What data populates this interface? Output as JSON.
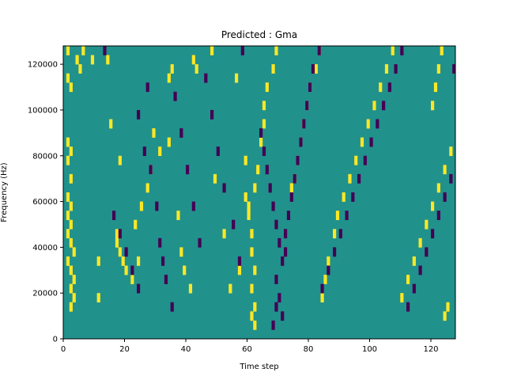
{
  "chart_data": {
    "type": "heatmap",
    "title": "Predicted : Gma",
    "xlabel": "Time step",
    "ylabel": "Frequency (Hz)",
    "xlim": [
      0,
      128
    ],
    "ylim": [
      0,
      128000
    ],
    "xticks": [
      0,
      20,
      40,
      60,
      80,
      100,
      120
    ],
    "yticks": [
      0,
      20000,
      40000,
      60000,
      80000,
      100000,
      120000
    ],
    "colormap": "viridis",
    "colors": {
      "background": "#21918c",
      "high": "#fde725",
      "low": "#440154"
    },
    "grid": false,
    "n_time_steps": 128,
    "n_freq_bins": 32,
    "high_cells": [
      [
        1,
        31
      ],
      [
        1,
        28
      ],
      [
        2,
        27
      ],
      [
        1,
        21
      ],
      [
        2,
        20
      ],
      [
        1,
        19
      ],
      [
        2,
        17
      ],
      [
        1,
        15
      ],
      [
        2,
        14
      ],
      [
        1,
        13
      ],
      [
        2,
        12
      ],
      [
        1,
        11
      ],
      [
        2,
        10
      ],
      [
        3,
        9
      ],
      [
        1,
        8
      ],
      [
        2,
        7
      ],
      [
        3,
        6
      ],
      [
        2,
        5
      ],
      [
        3,
        4
      ],
      [
        2,
        3
      ],
      [
        4,
        30
      ],
      [
        5,
        29
      ],
      [
        6,
        31
      ],
      [
        9,
        30
      ],
      [
        11,
        8
      ],
      [
        11,
        4
      ],
      [
        14,
        30
      ],
      [
        15,
        23
      ],
      [
        18,
        19
      ],
      [
        17,
        11
      ],
      [
        17,
        10
      ],
      [
        18,
        9
      ],
      [
        19,
        8
      ],
      [
        20,
        7
      ],
      [
        22,
        6
      ],
      [
        23,
        12
      ],
      [
        24,
        8
      ],
      [
        25,
        14
      ],
      [
        27,
        16
      ],
      [
        28,
        18
      ],
      [
        29,
        22
      ],
      [
        31,
        20
      ],
      [
        34,
        21
      ],
      [
        34,
        28
      ],
      [
        35,
        29
      ],
      [
        37,
        13
      ],
      [
        38,
        9
      ],
      [
        39,
        7
      ],
      [
        41,
        5
      ],
      [
        42,
        30
      ],
      [
        43,
        29
      ],
      [
        48,
        31
      ],
      [
        49,
        17
      ],
      [
        52,
        11
      ],
      [
        54,
        5
      ],
      [
        56,
        28
      ],
      [
        57,
        7
      ],
      [
        59,
        19
      ],
      [
        59,
        15
      ],
      [
        60,
        13
      ],
      [
        61,
        11
      ],
      [
        61,
        9
      ],
      [
        62,
        7
      ],
      [
        61,
        5
      ],
      [
        62,
        3
      ],
      [
        61,
        2
      ],
      [
        62,
        1
      ],
      [
        60,
        14
      ],
      [
        62,
        16
      ],
      [
        63,
        18
      ],
      [
        64,
        21
      ],
      [
        65,
        23
      ],
      [
        65,
        25
      ],
      [
        66,
        27
      ],
      [
        68,
        29
      ],
      [
        69,
        31
      ],
      [
        74,
        16
      ],
      [
        75,
        17
      ],
      [
        76,
        19
      ],
      [
        77,
        21
      ],
      [
        78,
        23
      ],
      [
        79,
        25
      ],
      [
        80,
        27
      ],
      [
        82,
        29
      ],
      [
        83,
        31
      ],
      [
        84,
        4
      ],
      [
        85,
        6
      ],
      [
        86,
        8
      ],
      [
        88,
        11
      ],
      [
        89,
        13
      ],
      [
        91,
        15
      ],
      [
        93,
        17
      ],
      [
        95,
        19
      ],
      [
        97,
        21
      ],
      [
        99,
        23
      ],
      [
        101,
        25
      ],
      [
        103,
        27
      ],
      [
        105,
        29
      ],
      [
        107,
        31
      ],
      [
        110,
        4
      ],
      [
        112,
        6
      ],
      [
        114,
        8
      ],
      [
        116,
        10
      ],
      [
        118,
        12
      ],
      [
        120,
        14
      ],
      [
        122,
        16
      ],
      [
        124,
        18
      ],
      [
        126,
        20
      ],
      [
        124,
        2
      ],
      [
        125,
        3
      ],
      [
        120,
        25
      ],
      [
        121,
        27
      ],
      [
        122,
        29
      ],
      [
        123,
        31
      ]
    ],
    "low_cells": [
      [
        13,
        31
      ],
      [
        16,
        13
      ],
      [
        18,
        11
      ],
      [
        20,
        9
      ],
      [
        22,
        7
      ],
      [
        24,
        5
      ],
      [
        24,
        24
      ],
      [
        26,
        20
      ],
      [
        27,
        27
      ],
      [
        28,
        18
      ],
      [
        30,
        14
      ],
      [
        31,
        10
      ],
      [
        32,
        8
      ],
      [
        33,
        6
      ],
      [
        35,
        3
      ],
      [
        36,
        26
      ],
      [
        38,
        22
      ],
      [
        40,
        18
      ],
      [
        42,
        14
      ],
      [
        44,
        10
      ],
      [
        46,
        28
      ],
      [
        48,
        24
      ],
      [
        50,
        20
      ],
      [
        52,
        16
      ],
      [
        55,
        12
      ],
      [
        57,
        8
      ],
      [
        58,
        31
      ],
      [
        64,
        22
      ],
      [
        65,
        20
      ],
      [
        66,
        18
      ],
      [
        67,
        16
      ],
      [
        68,
        14
      ],
      [
        69,
        12
      ],
      [
        70,
        10
      ],
      [
        71,
        8
      ],
      [
        69,
        6
      ],
      [
        70,
        4
      ],
      [
        71,
        2
      ],
      [
        69,
        3
      ],
      [
        68,
        1
      ],
      [
        72,
        9
      ],
      [
        72,
        11
      ],
      [
        73,
        13
      ],
      [
        74,
        15
      ],
      [
        75,
        17
      ],
      [
        76,
        19
      ],
      [
        77,
        21
      ],
      [
        78,
        23
      ],
      [
        79,
        25
      ],
      [
        80,
        27
      ],
      [
        81,
        29
      ],
      [
        83,
        31
      ],
      [
        84,
        5
      ],
      [
        86,
        7
      ],
      [
        88,
        9
      ],
      [
        90,
        11
      ],
      [
        92,
        13
      ],
      [
        94,
        15
      ],
      [
        96,
        17
      ],
      [
        98,
        19
      ],
      [
        100,
        21
      ],
      [
        102,
        23
      ],
      [
        104,
        25
      ],
      [
        106,
        27
      ],
      [
        108,
        29
      ],
      [
        110,
        31
      ],
      [
        112,
        3
      ],
      [
        114,
        5
      ],
      [
        116,
        7
      ],
      [
        118,
        9
      ],
      [
        120,
        11
      ],
      [
        122,
        13
      ],
      [
        124,
        15
      ],
      [
        126,
        17
      ],
      [
        127,
        29
      ]
    ]
  }
}
